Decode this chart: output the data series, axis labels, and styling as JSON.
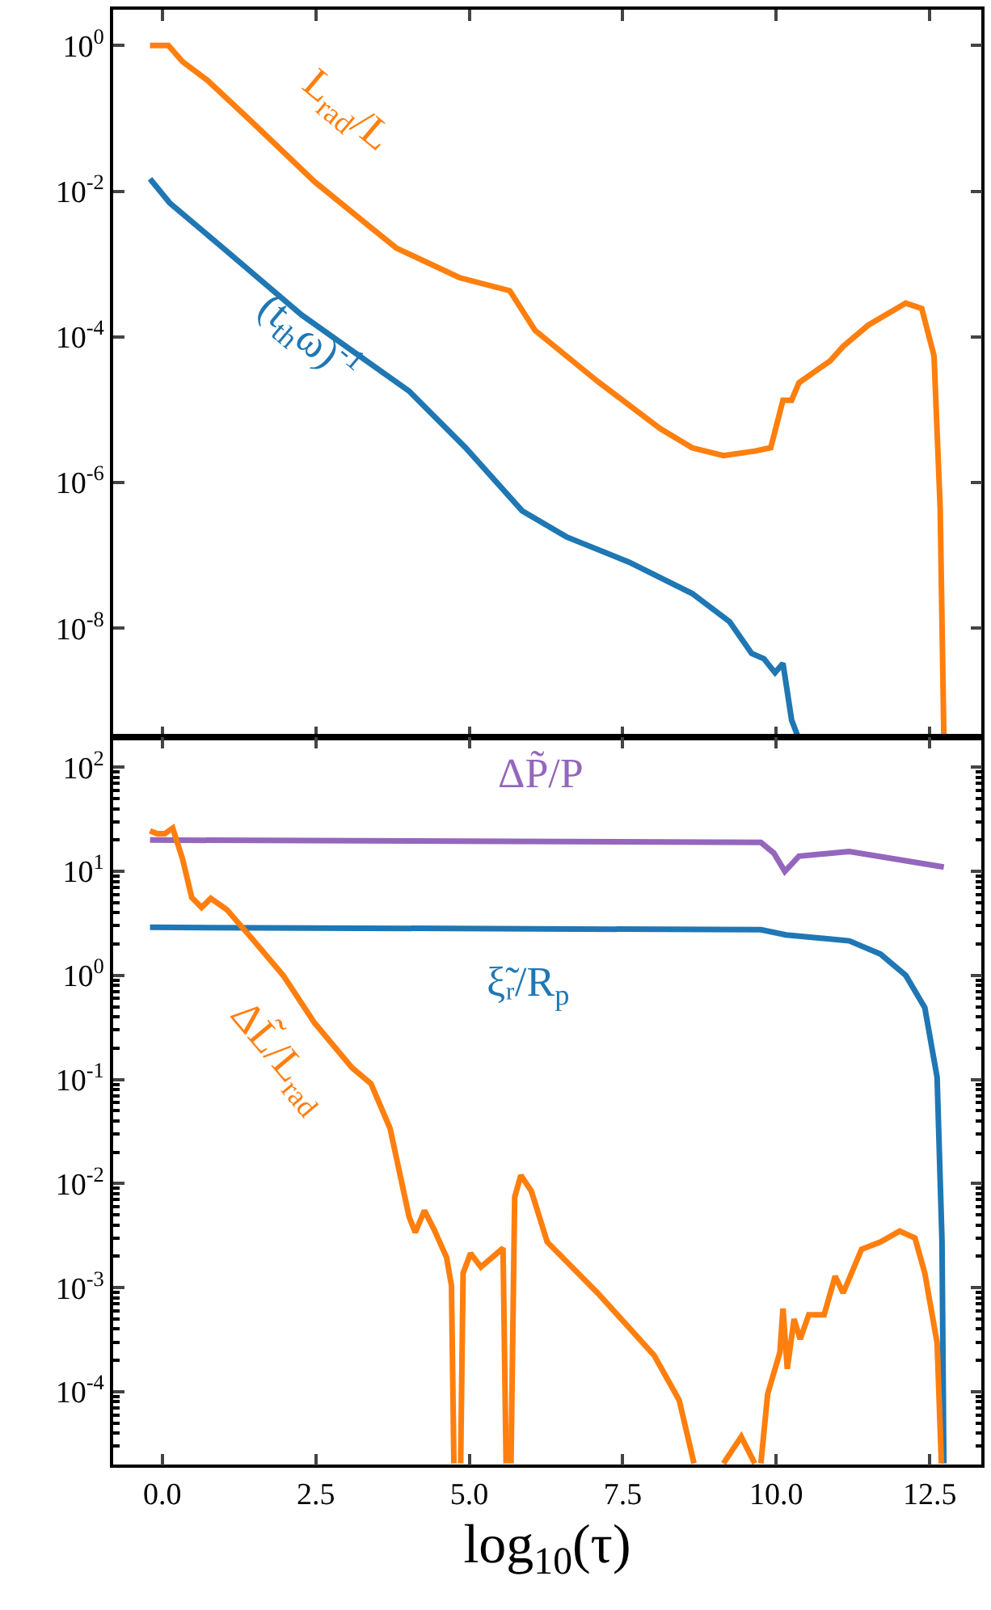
{
  "chart_data": [
    {
      "type": "line",
      "log": "y",
      "legend": false,
      "tick_labels": "y",
      "xlim": [
        -0.8,
        13.34
      ],
      "xticks": [
        {
          "value": 0,
          "label": null
        },
        {
          "value": 2.5,
          "label": null
        },
        {
          "value": 5,
          "label": null
        },
        {
          "value": 7.5,
          "label": null
        },
        {
          "value": 10,
          "label": null
        },
        {
          "value": 12.5,
          "label": null
        }
      ],
      "ylim": [
        3.2e-10,
        3.1
      ],
      "yticks": [
        {
          "value": 1,
          "label": "10$^{0}$"
        },
        {
          "value": 0.01,
          "label": "10$^{-2}$"
        },
        {
          "value": 0.0001,
          "label": "10$^{-4}$"
        },
        {
          "value": 1e-06,
          "label": "10$^{-6}$"
        },
        {
          "value": 1e-08,
          "label": "10$^{-8}$"
        }
      ],
      "series": [
        {
          "name": "L$_{rad}$/L",
          "color": "#ff7f0e",
          "x": [
            -0.2,
            0.1,
            0.33,
            0.74,
            1.45,
            2.48,
            3.3,
            3.81,
            4.84,
            5.66,
            6.07,
            7.09,
            8.11,
            8.63,
            9.14,
            9.65,
            9.91,
            10.11,
            10.25,
            10.37,
            10.88,
            11.09,
            11.5,
            12.11,
            12.37,
            12.57,
            12.67,
            12.73
          ],
          "values": [
            1,
            1,
            0.6,
            0.33,
            0.091,
            0.0135,
            0.0037,
            0.00166,
            0.00065,
            0.00043,
            0.000123,
            2.45e-05,
            5.5e-06,
            3e-06,
            2.34e-06,
            2.7e-06,
            3e-06,
            1.35e-05,
            1.35e-05,
            2.34e-05,
            4.7e-05,
            7.4e-05,
            0.000145,
            0.00029,
            0.000245,
            5.5e-05,
            4.5e-07,
            3.3e-10
          ]
        },
        {
          "name": "(t$_{th}$ω)$^{-1}$",
          "color": "#1f77b4",
          "x": [
            -0.2,
            0.12,
            0.94,
            2.27,
            4.02,
            4.94,
            5.86,
            6.58,
            7.6,
            8.63,
            9.24,
            9.6,
            9.8,
            9.98,
            10.11,
            10.25,
            10.35
          ],
          "values": [
            0.0148,
            0.0069,
            0.0018,
            0.0002,
            1.8e-05,
            3e-06,
            4.1e-07,
            1.8e-07,
            8.1e-08,
            3e-08,
            1.23e-08,
            4.5e-09,
            3.8e-09,
            2.45e-09,
            3.3e-09,
            5.5e-10,
            3.3e-10
          ]
        }
      ]
    },
    {
      "type": "line",
      "log": "y",
      "legend": false,
      "xlabel": "log$_{10}$(τ)",
      "xlim": [
        -0.8,
        13.34
      ],
      "xticks": [
        {
          "value": 0,
          "label": "0.0"
        },
        {
          "value": 2.5,
          "label": "2.5"
        },
        {
          "value": 5,
          "label": "5.0"
        },
        {
          "value": 7.5,
          "label": "7.5"
        },
        {
          "value": 10,
          "label": "10.0"
        },
        {
          "value": 12.5,
          "label": "12.5"
        }
      ],
      "ylim": [
        2e-05,
        195
      ],
      "yticks": [
        {
          "value": 100,
          "label": "10$^{2}$"
        },
        {
          "value": 10,
          "label": "10$^{1}$"
        },
        {
          "value": 1,
          "label": "10$^{0}$"
        },
        {
          "value": 0.1,
          "label": "10$^{-1}$"
        },
        {
          "value": 0.01,
          "label": "10$^{-2}$"
        },
        {
          "value": 0.001,
          "label": "10$^{-3}$"
        },
        {
          "value": 0.0001,
          "label": "10$^{-4}$"
        }
      ],
      "series": [
        {
          "name": "ΔP̃/P",
          "color": "#9467bd",
          "x": [
            -0.2,
            9.75,
            9.96,
            10.14,
            10.37,
            11.19,
            12.73
          ],
          "values": [
            20,
            19,
            15,
            10,
            14,
            15.5,
            11
          ]
        },
        {
          "name": "ξ̃ᵣ/R$_{p}$",
          "color": "#1f77b4",
          "x": [
            -0.2,
            9.75,
            10.16,
            11.19,
            11.7,
            12.11,
            12.42,
            12.62,
            12.7,
            12.73
          ],
          "values": [
            2.9,
            2.75,
            2.45,
            2.15,
            1.6,
            1.0,
            0.49,
            0.105,
            0.0028,
            2.05e-05
          ]
        },
        {
          "name": "ΔL̃/L$_{rad}$",
          "color": "#ff7f0e",
          "x": [
            -0.2,
            -0.08,
            0.04,
            0.17,
            0.33,
            0.48,
            0.64,
            0.79,
            1.05,
            1.45,
            1.97,
            2.48,
            3.09,
            3.4,
            3.71,
            4.02,
            4.12,
            4.27,
            4.43,
            4.63,
            4.71,
            4.75,
            4.8,
            4.86,
            4.9,
            5.02,
            5.19,
            5.55,
            5.6,
            5.64,
            5.68,
            5.74,
            5.84,
            6.01,
            6.27,
            7.09,
            8.01,
            8.42,
            8.66,
            8.9,
            9.14,
            9.43,
            9.65,
            9.7,
            9.75,
            9.86,
            10.06,
            10.11,
            10.18,
            10.29,
            10.39,
            10.53,
            10.78,
            10.96,
            11.09,
            11.39,
            11.7,
            12.01,
            12.26,
            12.42,
            12.62,
            12.69
          ],
          "values": [
            24.5,
            23,
            23,
            26,
            13.2,
            5.6,
            4.5,
            5.5,
            4.3,
            2.3,
            1.0,
            0.35,
            0.13,
            0.091,
            0.034,
            0.0048,
            0.0034,
            0.0055,
            0.0036,
            0.00195,
            0.00105,
            2.05e-05,
            null,
            2.05e-05,
            0.00138,
            0.00214,
            0.00158,
            0.0024,
            2.05e-05,
            null,
            2.05e-05,
            0.0074,
            0.012,
            0.0085,
            0.00275,
            0.00089,
            0.000224,
            8.3e-05,
            2.05e-05,
            null,
            2.05e-05,
            3.7e-05,
            2.05e-05,
            null,
            2.05e-05,
            9.5e-05,
            0.00024,
            0.00063,
            0.000166,
            0.0005,
            0.00032,
            0.00055,
            0.00055,
            0.00129,
            0.00089,
            0.00234,
            0.00275,
            0.0035,
            0.003,
            0.00138,
            0.000295,
            2.05e-05
          ]
        }
      ]
    }
  ]
}
